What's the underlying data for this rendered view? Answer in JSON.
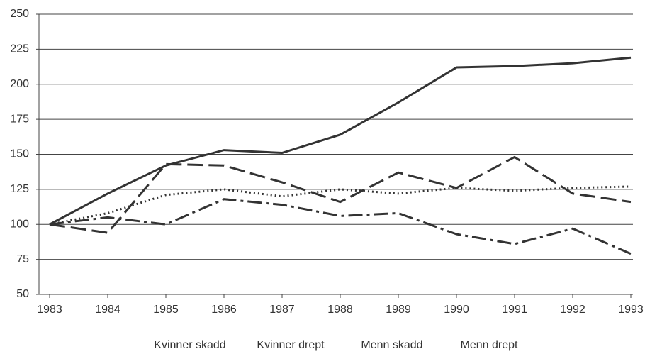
{
  "chart_data": {
    "type": "line",
    "x": [
      1983,
      1984,
      1985,
      1986,
      1987,
      1988,
      1989,
      1990,
      1991,
      1992,
      1993
    ],
    "xlim": [
      1983,
      1993
    ],
    "xticks": [
      1983,
      1984,
      1985,
      1986,
      1987,
      1988,
      1989,
      1990,
      1991,
      1992,
      1993
    ],
    "ylim": [
      50,
      250
    ],
    "yticks": [
      50,
      75,
      100,
      125,
      150,
      175,
      200,
      225,
      250
    ],
    "grid": true,
    "legend": "bottom",
    "series": [
      {
        "name": "Kvinner skadd",
        "color": "#333333",
        "style": "solid",
        "values": [
          100,
          122,
          142,
          153,
          151,
          164,
          187,
          212,
          213,
          215,
          219
        ]
      },
      {
        "name": "Kvinner drept",
        "color": "#333333",
        "style": "dashed",
        "values": [
          100,
          94,
          143,
          142,
          130,
          116,
          137,
          126,
          148,
          122,
          116
        ]
      },
      {
        "name": "Menn skadd",
        "color": "#333333",
        "style": "dotted",
        "values": [
          100,
          108,
          121,
          125,
          120,
          125,
          122,
          126,
          124,
          126,
          127
        ]
      },
      {
        "name": "Menn drept",
        "color": "#333333",
        "style": "dashdot",
        "values": [
          100,
          105,
          100,
          118,
          114,
          106,
          108,
          93,
          86,
          97,
          79
        ]
      }
    ]
  }
}
